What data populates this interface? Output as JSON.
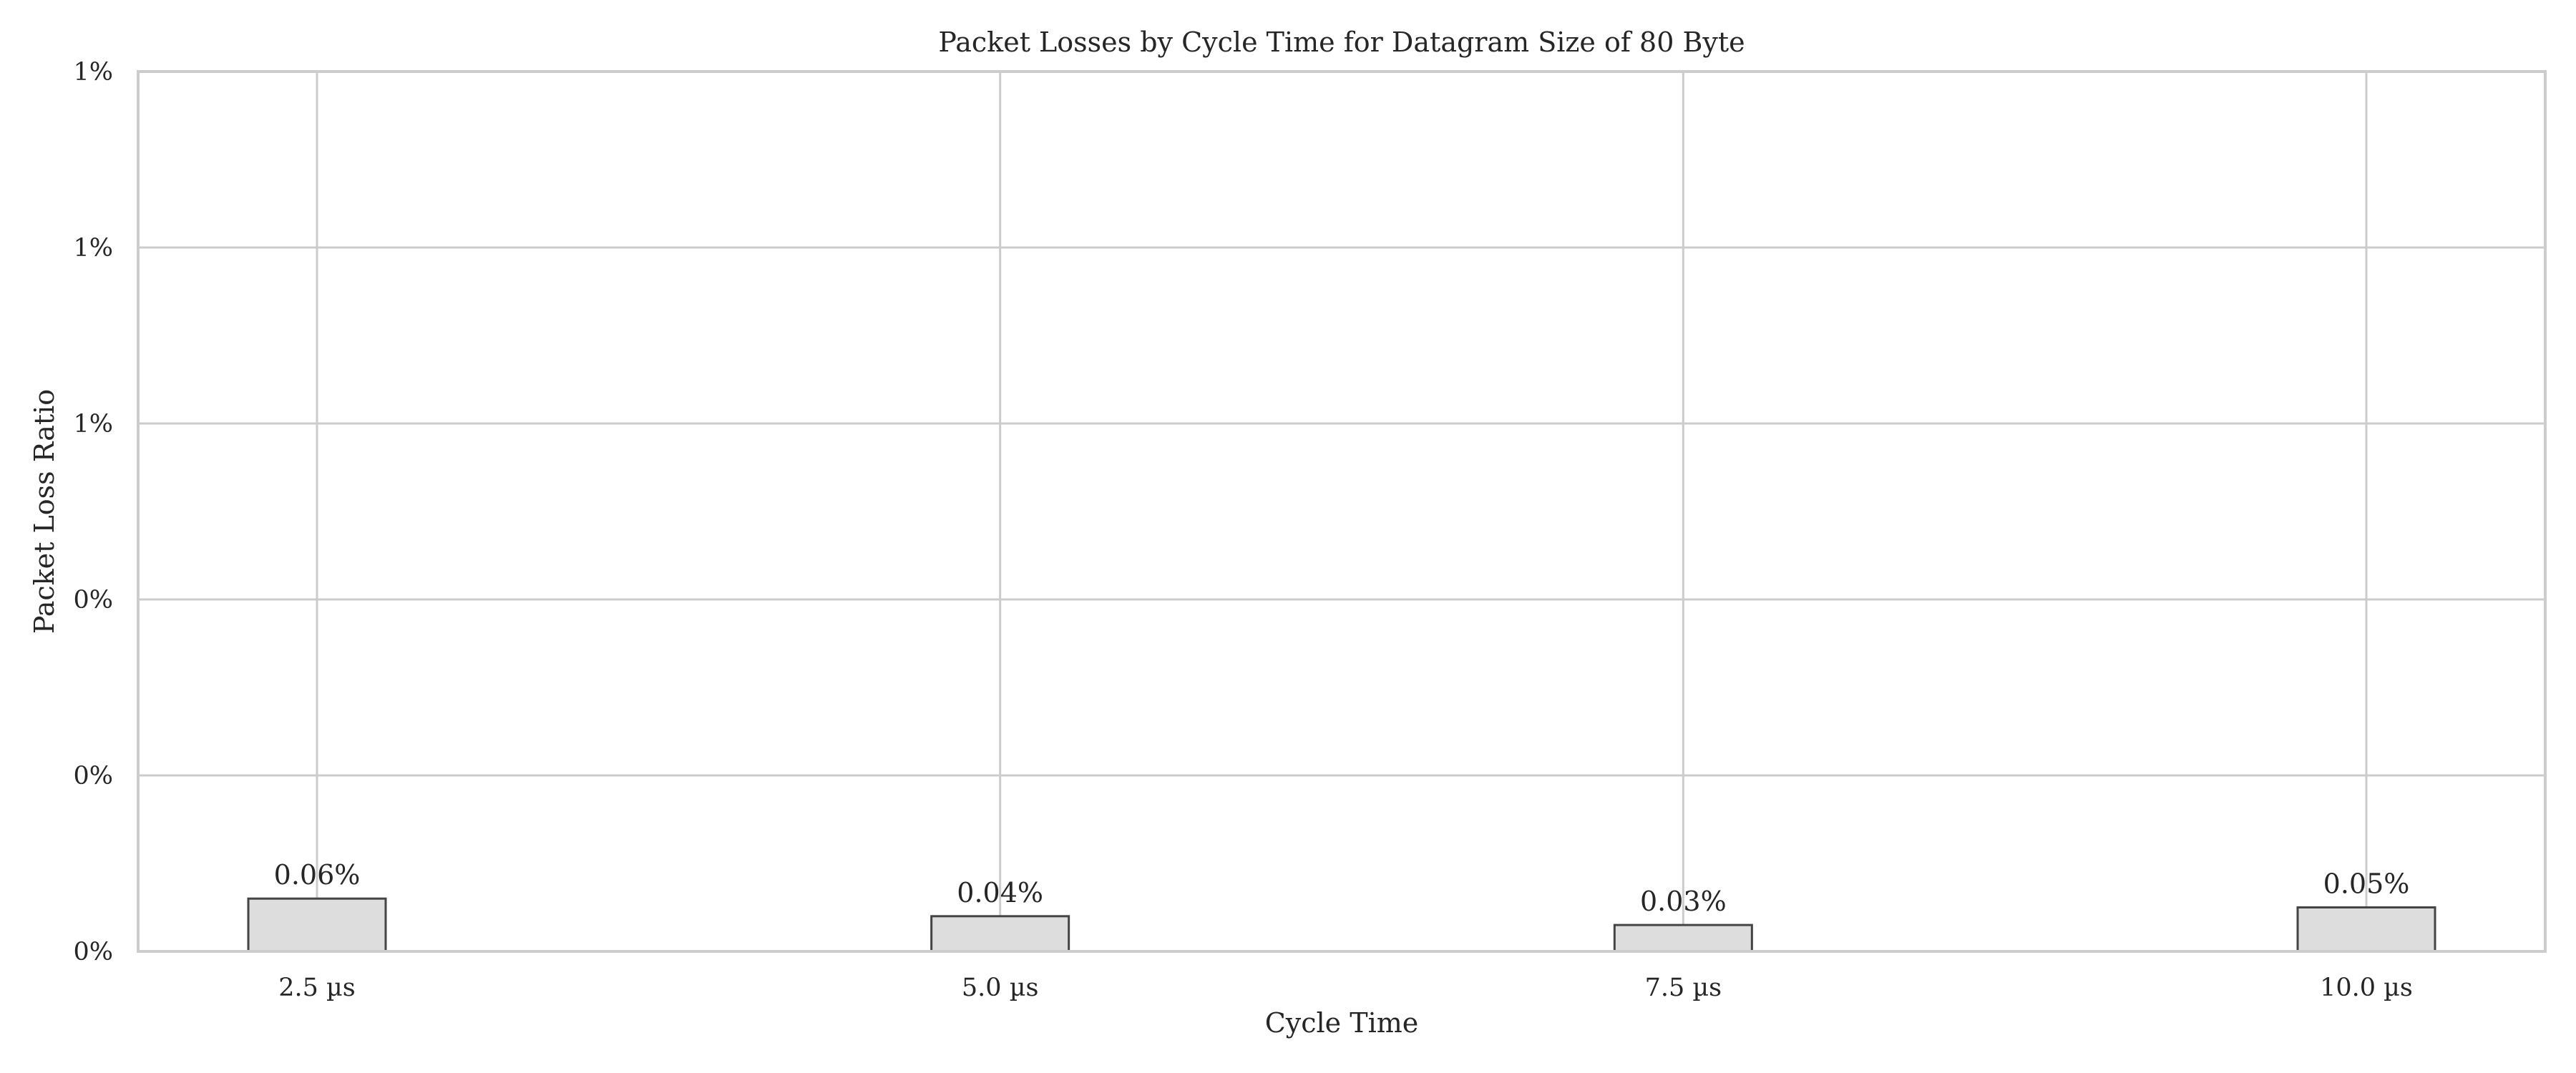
{
  "chart_data": {
    "type": "bar",
    "title": "Packet Losses by Cycle Time for Datagram Size of 80 Byte",
    "xlabel": "Cycle Time",
    "ylabel": "Packet Loss Ratio",
    "categories": [
      "2.5 µs",
      "5.0 µs",
      "7.5 µs",
      "10.0 µs"
    ],
    "values": [
      0.06,
      0.04,
      0.03,
      0.05
    ],
    "value_labels": [
      "0.06%",
      "0.04%",
      "0.03%",
      "0.05%"
    ],
    "value_unit": "%",
    "ylim": [
      0,
      1.0
    ],
    "yticks": [
      0,
      0.2,
      0.4,
      0.6,
      0.8,
      1.0
    ],
    "ytick_labels": [
      "0%",
      "0%",
      "0%",
      "1%",
      "1%",
      "1%"
    ],
    "grid": true,
    "colors": {
      "bar_fill": "#dddddd",
      "bar_edge": "#444444",
      "grid": "#cccccc",
      "axes_edge": "#cccccc",
      "text": "#262626"
    }
  }
}
